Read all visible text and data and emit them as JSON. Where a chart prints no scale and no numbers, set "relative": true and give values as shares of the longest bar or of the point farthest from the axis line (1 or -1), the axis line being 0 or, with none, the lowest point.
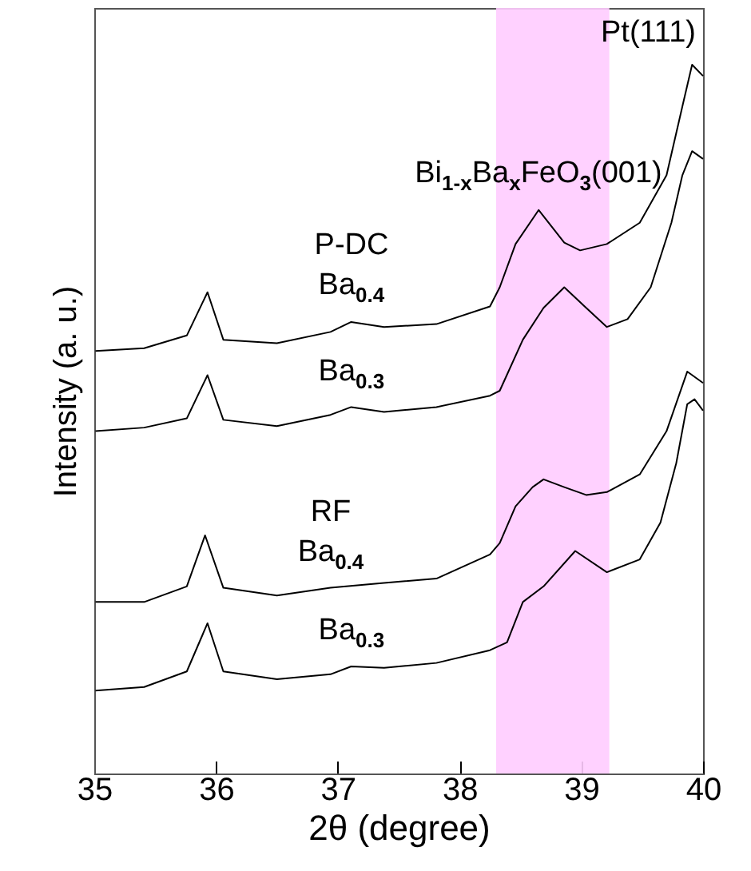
{
  "chart_data": {
    "type": "line",
    "relative": true,
    "xlabel": "2θ (degree)",
    "ylabel": "Intensity (a. u.)",
    "xlim": [
      35,
      40
    ],
    "xticks": [
      35,
      36,
      37,
      38,
      39,
      40
    ],
    "grid": false,
    "marker": "none",
    "line_style": "solid",
    "bands": [
      {
        "axis": "x",
        "from": 38.3,
        "to": 39.23,
        "color": "#ffccff"
      }
    ],
    "annotations": [
      {
        "text": "Pt(111)",
        "x": 39.91,
        "y": 1.0
      },
      {
        "text": "Bi$_{1-x}$Ba$_{x}$FeO$_{3}$(001)",
        "x": 38.65,
        "y": 0.795
      },
      {
        "text": "Ba$_{0.4}$",
        "x": 37.11,
        "y": 0.637
      },
      {
        "text": "P-DC",
        "x": 37.11,
        "y": 0.637
      },
      {
        "text": "Ba$_{0.3}$",
        "x": 37.11,
        "y": 0.517
      },
      {
        "text": "Ba$_{0.4}$",
        "x": 36.94,
        "y": 0.262
      },
      {
        "text": "RF",
        "x": 36.94,
        "y": 0.262
      },
      {
        "text": "Ba$_{0.3}$",
        "x": 37.11,
        "y": 0.151
      }
    ],
    "series": [
      {
        "color": "#000000",
        "x": [
          35.01,
          35.41,
          35.76,
          35.93,
          36.06,
          36.5,
          36.94,
          37.11,
          37.38,
          37.81,
          38.25,
          38.33,
          38.46,
          38.65,
          38.86,
          38.99,
          39.21,
          39.48,
          39.7,
          39.83,
          39.91,
          40.0
        ],
        "values": [
          0.596,
          0.6,
          0.618,
          0.679,
          0.612,
          0.607,
          0.623,
          0.637,
          0.63,
          0.634,
          0.659,
          0.686,
          0.747,
          0.795,
          0.749,
          0.738,
          0.747,
          0.777,
          0.844,
          0.941,
          1.0,
          0.984
        ]
      },
      {
        "color": "#000000",
        "x": [
          35.01,
          35.41,
          35.76,
          35.93,
          36.06,
          36.5,
          36.94,
          37.11,
          37.38,
          37.81,
          38.25,
          38.33,
          38.52,
          38.69,
          38.86,
          39.04,
          39.21,
          39.38,
          39.57,
          39.74,
          39.83,
          39.91,
          40.0
        ],
        "values": [
          0.483,
          0.488,
          0.501,
          0.562,
          0.499,
          0.49,
          0.506,
          0.517,
          0.51,
          0.517,
          0.533,
          0.54,
          0.612,
          0.657,
          0.686,
          0.657,
          0.63,
          0.641,
          0.686,
          0.777,
          0.844,
          0.878,
          0.867
        ]
      },
      {
        "color": "#000000",
        "x": [
          35.01,
          35.41,
          35.76,
          35.91,
          36.06,
          36.5,
          36.94,
          37.38,
          37.81,
          38.25,
          38.33,
          38.46,
          38.6,
          38.69,
          38.86,
          39.04,
          39.21,
          39.48,
          39.7,
          39.87,
          40.0
        ],
        "values": [
          0.242,
          0.242,
          0.264,
          0.336,
          0.262,
          0.251,
          0.262,
          0.269,
          0.275,
          0.309,
          0.325,
          0.377,
          0.404,
          0.415,
          0.404,
          0.393,
          0.397,
          0.422,
          0.483,
          0.567,
          0.551
        ]
      },
      {
        "color": "#000000",
        "x": [
          35.01,
          35.41,
          35.76,
          35.93,
          36.06,
          36.5,
          36.94,
          37.11,
          37.38,
          37.81,
          38.25,
          38.39,
          38.52,
          38.69,
          38.95,
          39.21,
          39.48,
          39.65,
          39.78,
          39.87,
          39.93,
          40.0
        ],
        "values": [
          0.117,
          0.122,
          0.144,
          0.212,
          0.144,
          0.133,
          0.14,
          0.151,
          0.149,
          0.156,
          0.174,
          0.185,
          0.242,
          0.264,
          0.314,
          0.284,
          0.302,
          0.354,
          0.438,
          0.521,
          0.528,
          0.512
        ]
      }
    ]
  }
}
